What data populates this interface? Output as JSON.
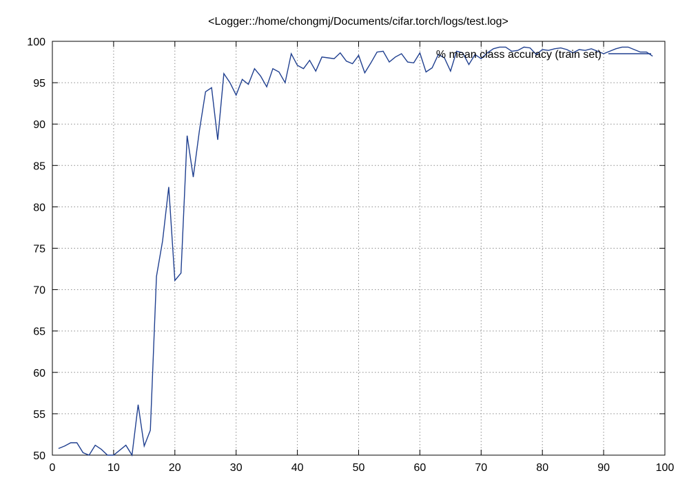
{
  "chart_data": {
    "type": "line",
    "title": "<Logger::/home/chongmj/Documents/cifar.torch/logs/test.log>",
    "xlabel": "",
    "ylabel": "",
    "xlim": [
      0,
      100
    ],
    "ylim": [
      50,
      100
    ],
    "xticks": [
      0,
      10,
      20,
      30,
      40,
      50,
      60,
      70,
      80,
      90,
      100
    ],
    "yticks": [
      50,
      55,
      60,
      65,
      70,
      75,
      80,
      85,
      90,
      95,
      100
    ],
    "grid": true,
    "legend_position": "top-right",
    "series": [
      {
        "name": "% mean class accuracy (train set)",
        "color": "#1f3f8f",
        "x": [
          1,
          2,
          3,
          4,
          5,
          6,
          7,
          8,
          9,
          10,
          11,
          12,
          13,
          14,
          15,
          16,
          17,
          18,
          19,
          20,
          21,
          22,
          23,
          24,
          25,
          26,
          27,
          28,
          29,
          30,
          31,
          32,
          33,
          34,
          35,
          36,
          37,
          38,
          39,
          40,
          41,
          42,
          43,
          44,
          45,
          46,
          47,
          48,
          49,
          50,
          51,
          52,
          53,
          54,
          55,
          56,
          57,
          58,
          59,
          60,
          61,
          62,
          63,
          64,
          65,
          66,
          67,
          68,
          69,
          70,
          71,
          72,
          73,
          74,
          75,
          76,
          77,
          78,
          79,
          80,
          81,
          82,
          83,
          84,
          85,
          86,
          87,
          88,
          89,
          90,
          91,
          92,
          93,
          94,
          95,
          96,
          97,
          98
        ],
        "values": [
          50.8,
          51.1,
          51.5,
          51.5,
          50.3,
          50.0,
          51.2,
          50.7,
          50.0,
          50.0,
          50.6,
          51.2,
          50.0,
          56.1,
          51.1,
          53.0,
          71.6,
          75.9,
          82.4,
          71.1,
          72.0,
          88.6,
          83.6,
          89.2,
          93.9,
          94.4,
          88.1,
          96.1,
          95.0,
          93.5,
          95.4,
          94.8,
          96.7,
          95.8,
          94.5,
          96.7,
          96.3,
          95.0,
          98.5,
          97.1,
          96.7,
          97.7,
          96.4,
          98.1,
          98.0,
          97.9,
          98.6,
          97.6,
          97.3,
          98.3,
          96.2,
          97.4,
          98.7,
          98.8,
          97.5,
          98.1,
          98.5,
          97.5,
          97.4,
          98.6,
          96.3,
          96.8,
          98.4,
          98.0,
          96.4,
          98.8,
          98.6,
          97.2,
          98.4,
          97.9,
          98.6,
          99.1,
          99.3,
          99.3,
          98.8,
          98.9,
          99.3,
          99.2,
          98.4,
          99.0,
          98.9,
          99.1,
          99.2,
          99.0,
          98.6,
          99.0,
          98.9,
          99.1,
          98.8,
          98.5,
          98.8,
          99.1,
          99.3,
          99.3,
          99.0,
          98.7,
          98.7,
          98.2
        ]
      }
    ]
  }
}
